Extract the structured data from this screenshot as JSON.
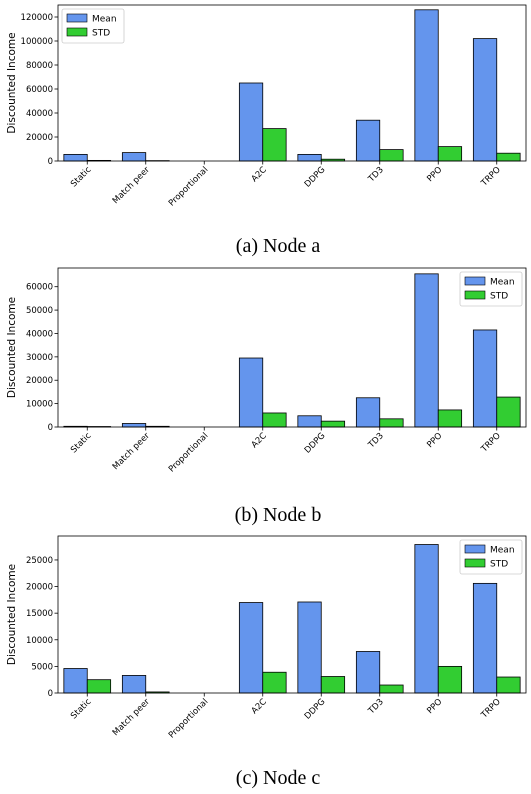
{
  "chart_data": [
    {
      "type": "bar",
      "caption": "(a) Node a",
      "ylabel": "Discounted Income",
      "categories": [
        "Static",
        "Match peer",
        "Proportional",
        "A2C",
        "DDPG",
        "TD3",
        "PPO",
        "TRPO"
      ],
      "series": [
        {
          "name": "Mean",
          "color": "#6495ED",
          "values": [
            5500,
            7000,
            0,
            65000,
            5500,
            34000,
            126000,
            102000
          ]
        },
        {
          "name": "STD",
          "color": "#32CD32",
          "values": [
            500,
            300,
            0,
            27000,
            1500,
            9500,
            12000,
            6500
          ]
        }
      ],
      "ylim": [
        0,
        130000
      ],
      "yticks": [
        0,
        20000,
        40000,
        60000,
        80000,
        100000,
        120000
      ],
      "legend_position": "top-left"
    },
    {
      "type": "bar",
      "caption": "(b) Node b",
      "ylabel": "Discounted Income",
      "categories": [
        "Static",
        "Match peer",
        "Proportional",
        "A2C",
        "DDPG",
        "TD3",
        "PPO",
        "TRPO"
      ],
      "series": [
        {
          "name": "Mean",
          "color": "#6495ED",
          "values": [
            300,
            1500,
            0,
            29500,
            4800,
            12500,
            65500,
            41500
          ]
        },
        {
          "name": "STD",
          "color": "#32CD32",
          "values": [
            200,
            300,
            0,
            6000,
            2500,
            3500,
            7300,
            12800
          ]
        }
      ],
      "ylim": [
        0,
        68000
      ],
      "yticks": [
        0,
        10000,
        20000,
        30000,
        40000,
        50000,
        60000
      ],
      "legend_position": "top-right"
    },
    {
      "type": "bar",
      "caption": "(c) Node c",
      "ylabel": "Discounted Income",
      "categories": [
        "Static",
        "Match peer",
        "Proportional",
        "A2C",
        "DDPG",
        "TD3",
        "PPO",
        "TRPO"
      ],
      "series": [
        {
          "name": "Mean",
          "color": "#6495ED",
          "values": [
            4600,
            3300,
            0,
            17000,
            17100,
            7800,
            27900,
            20600
          ]
        },
        {
          "name": "STD",
          "color": "#32CD32",
          "values": [
            2500,
            200,
            0,
            3900,
            3100,
            1500,
            5000,
            3000
          ]
        }
      ],
      "ylim": [
        0,
        29500
      ],
      "yticks": [
        0,
        5000,
        10000,
        15000,
        20000,
        25000
      ],
      "legend_position": "top-right"
    }
  ]
}
